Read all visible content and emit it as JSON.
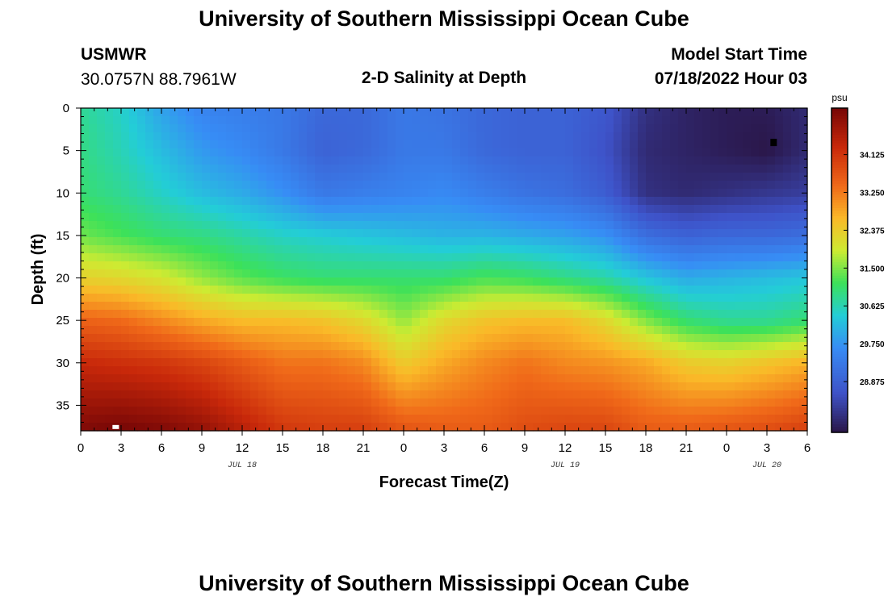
{
  "page_title": "University of Southern Mississippi Ocean Cube",
  "footer_title": "University of Southern Mississippi Ocean Cube",
  "station": {
    "name": "USMWR",
    "coords": "30.0757N  88.7961W"
  },
  "plot_title": "2-D Salinity at Depth",
  "model_start": {
    "label": "Model Start Time",
    "value": "07/18/2022 Hour 03"
  },
  "chart_data": {
    "type": "heatmap",
    "title": "2-D Salinity at Depth",
    "xlabel": "Forecast Time(Z)",
    "ylabel": "Depth (ft)",
    "units": "psu",
    "xlim": [
      0,
      54
    ],
    "ylim": [
      0,
      38
    ],
    "x_tick_values": [
      0,
      3,
      6,
      9,
      12,
      15,
      18,
      21,
      24,
      27,
      30,
      33,
      36,
      39,
      42,
      45,
      48,
      51,
      54
    ],
    "x_tick_labels": [
      "0",
      "3",
      "6",
      "9",
      "12",
      "15",
      "18",
      "21",
      "0",
      "3",
      "6",
      "9",
      "12",
      "15",
      "18",
      "21",
      "0",
      "3",
      "6"
    ],
    "y_tick_values": [
      0,
      5,
      10,
      15,
      20,
      25,
      30,
      35
    ],
    "y_tick_labels": [
      "0",
      "5",
      "10",
      "15",
      "20",
      "25",
      "30",
      "35"
    ],
    "date_labels": [
      {
        "x": 12,
        "text": "JUL 18"
      },
      {
        "x": 36,
        "text": "JUL 19"
      },
      {
        "x": 51,
        "text": "JUL 20"
      }
    ],
    "colorbar": {
      "min": 27.7,
      "max": 35.2,
      "tick_values": [
        28.875,
        29.75,
        30.625,
        31.5,
        32.375,
        33.25,
        34.125
      ],
      "tick_labels": [
        "28.875",
        "29.750",
        "30.625",
        "31.500",
        "32.375",
        "33.250",
        "34.125"
      ]
    },
    "grid_x_hours": [
      0,
      3,
      6,
      9,
      12,
      15,
      18,
      21,
      24,
      27,
      30,
      33,
      36,
      39,
      42,
      45,
      48,
      51,
      54
    ],
    "grid_depths_ft": [
      0,
      5,
      10,
      15,
      20,
      25,
      30,
      38
    ],
    "salinity_grid_psu": [
      [
        30.8,
        30.5,
        29.9,
        29.5,
        29.4,
        29.3,
        29.0,
        29.0,
        29.3,
        29.2,
        29.0,
        28.9,
        28.9,
        28.7,
        28.1,
        27.9,
        27.8,
        27.8,
        28.0
      ],
      [
        30.9,
        30.6,
        30.2,
        29.8,
        29.6,
        29.3,
        28.9,
        29.0,
        29.3,
        29.3,
        29.0,
        28.9,
        28.9,
        28.6,
        28.0,
        27.9,
        27.8,
        27.7,
        28.0
      ],
      [
        31.0,
        30.8,
        30.5,
        30.2,
        30.0,
        29.7,
        29.3,
        29.4,
        29.5,
        29.6,
        29.4,
        29.2,
        29.1,
        28.8,
        28.1,
        28.0,
        28.1,
        28.2,
        28.3
      ],
      [
        31.4,
        31.2,
        31.0,
        30.9,
        30.7,
        30.5,
        30.4,
        30.3,
        30.2,
        30.1,
        30.1,
        30.0,
        29.9,
        29.7,
        29.1,
        28.9,
        29.0,
        29.0,
        29.1
      ],
      [
        32.3,
        32.2,
        32.0,
        31.6,
        31.3,
        31.1,
        31.0,
        31.0,
        31.0,
        31.0,
        31.2,
        31.1,
        30.9,
        30.7,
        30.3,
        30.0,
        30.1,
        30.2,
        30.3
      ],
      [
        33.5,
        33.4,
        33.1,
        32.8,
        32.6,
        32.6,
        32.5,
        32.2,
        31.6,
        32.2,
        32.5,
        32.6,
        32.6,
        32.2,
        31.5,
        31.0,
        30.8,
        30.8,
        31.0
      ],
      [
        34.3,
        34.2,
        34.1,
        33.9,
        33.6,
        33.3,
        33.3,
        33.1,
        32.4,
        32.8,
        33.1,
        33.3,
        33.1,
        33.0,
        32.8,
        32.4,
        32.3,
        32.5,
        32.7
      ],
      [
        35.1,
        35.2,
        35.1,
        34.9,
        34.5,
        34.1,
        34.0,
        34.0,
        33.7,
        33.6,
        33.6,
        33.8,
        33.9,
        33.9,
        33.6,
        33.6,
        33.7,
        33.8,
        34.0
      ]
    ],
    "markers": [
      {
        "color": "#000000",
        "x": 51.5,
        "y": 4.0
      },
      {
        "color": "#ffffff",
        "x": 2.6,
        "y": 37.7
      }
    ]
  }
}
